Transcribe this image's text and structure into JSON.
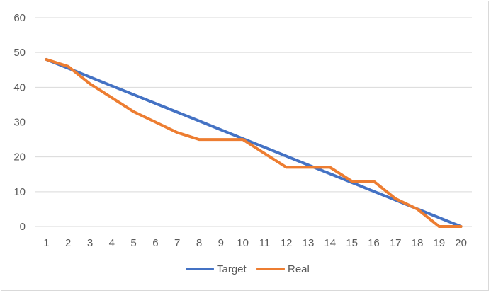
{
  "chart_data": {
    "type": "line",
    "title": "",
    "xlabel": "",
    "ylabel": "",
    "categories": [
      "1",
      "2",
      "3",
      "4",
      "5",
      "6",
      "7",
      "8",
      "9",
      "10",
      "11",
      "12",
      "13",
      "14",
      "15",
      "16",
      "17",
      "18",
      "19",
      "20"
    ],
    "ylim": [
      0,
      60
    ],
    "yticks": [
      "0",
      "10",
      "20",
      "30",
      "40",
      "50",
      "60"
    ],
    "grid": true,
    "legend": "bottom",
    "series": [
      {
        "name": "Target",
        "color": "#4472c4",
        "values": [
          48,
          45.47,
          42.95,
          40.42,
          37.89,
          35.37,
          32.84,
          30.32,
          27.79,
          25.26,
          22.74,
          20.21,
          17.68,
          15.16,
          12.63,
          10.11,
          7.58,
          5.05,
          2.53,
          0
        ]
      },
      {
        "name": "Real",
        "color": "#ed7d31",
        "values": [
          48,
          46,
          41,
          37,
          33,
          30,
          27,
          25,
          25,
          25,
          21,
          17,
          17,
          17,
          13,
          13,
          8,
          5,
          0,
          0
        ]
      }
    ]
  }
}
